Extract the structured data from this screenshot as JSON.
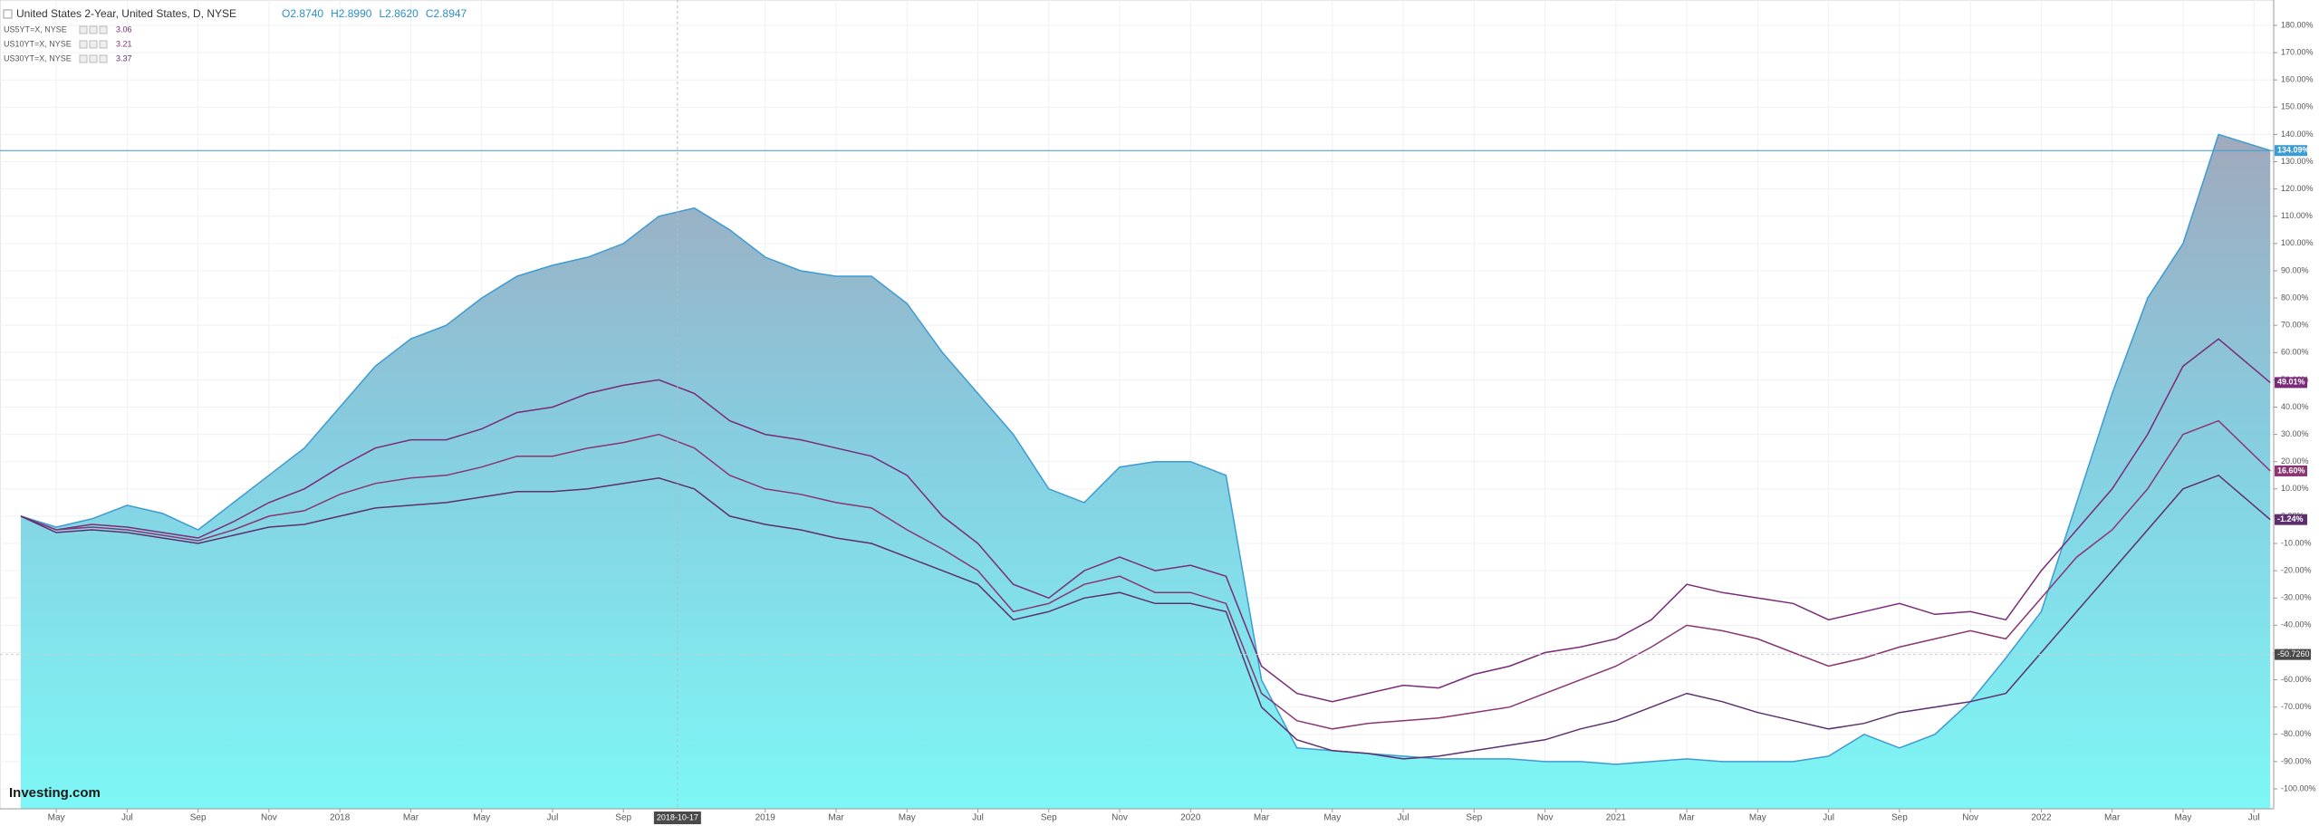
{
  "chart_data": {
    "type": "area",
    "ohlc": [
      "O2.8740",
      "H2.8990",
      "L2.8620",
      "C2.8947"
    ],
    "logo": "Investing.com",
    "x": [
      "2017-04",
      "2017-05",
      "2017-06",
      "2017-07",
      "2017-08",
      "2017-09",
      "2017-10",
      "2017-11",
      "2017-12",
      "2018-01",
      "2018-02",
      "2018-03",
      "2018-04",
      "2018-05",
      "2018-06",
      "2018-07",
      "2018-08",
      "2018-09",
      "2018-10",
      "2018-11",
      "2018-12",
      "2019-01",
      "2019-02",
      "2019-03",
      "2019-04",
      "2019-05",
      "2019-06",
      "2019-07",
      "2019-08",
      "2019-09",
      "2019-10",
      "2019-11",
      "2019-12",
      "2020-01",
      "2020-02",
      "2020-03",
      "2020-04",
      "2020-05",
      "2020-06",
      "2020-07",
      "2020-08",
      "2020-09",
      "2020-10",
      "2020-11",
      "2020-12",
      "2021-01",
      "2021-02",
      "2021-03",
      "2021-04",
      "2021-05",
      "2021-06",
      "2021-07",
      "2021-08",
      "2021-09",
      "2021-10",
      "2021-11",
      "2021-12",
      "2022-01",
      "2022-02",
      "2022-03",
      "2022-04",
      "2022-05",
      "2022-06",
      "2022-07-15"
    ],
    "series": [
      {
        "name": "United States 2-Year, United States, D, NYSE",
        "kind": "area",
        "color": "#3d9bd3",
        "end_label": "134.09%",
        "values": [
          0,
          -4,
          -1,
          4,
          1,
          -5,
          5,
          15,
          25,
          40,
          55,
          65,
          70,
          80,
          88,
          92,
          95,
          100,
          110,
          113,
          105,
          95,
          90,
          88,
          88,
          78,
          60,
          45,
          30,
          10,
          5,
          18,
          20,
          20,
          15,
          -60,
          -85,
          -86,
          -87,
          -88,
          -89,
          -89,
          -89,
          -90,
          -90,
          -91,
          -90,
          -89,
          -90,
          -90,
          -90,
          -88,
          -80,
          -85,
          -80,
          -68,
          -52,
          -35,
          5,
          45,
          80,
          100,
          140,
          134.09
        ]
      },
      {
        "name": "US5YT=X, NYSE",
        "kind": "line",
        "color": "#7a2a78",
        "legend_value": 3.06,
        "end_label": "49.01%",
        "values": [
          0,
          -5,
          -3,
          -4,
          -6,
          -8,
          -2,
          5,
          10,
          18,
          25,
          28,
          28,
          32,
          38,
          40,
          45,
          48,
          50,
          45,
          35,
          30,
          28,
          25,
          22,
          15,
          0,
          -10,
          -25,
          -30,
          -20,
          -15,
          -20,
          -18,
          -22,
          -55,
          -65,
          -68,
          -65,
          -62,
          -63,
          -58,
          -55,
          -50,
          -48,
          -45,
          -38,
          -25,
          -28,
          -30,
          -32,
          -38,
          -35,
          -32,
          -36,
          -35,
          -38,
          -20,
          -5,
          10,
          30,
          55,
          65,
          49.01
        ]
      },
      {
        "name": "US10YT=X, NYSE",
        "kind": "line",
        "color": "#8a3572",
        "legend_value": 3.21,
        "end_label": "16.60%",
        "values": [
          0,
          -5,
          -4,
          -5,
          -7,
          -9,
          -5,
          0,
          2,
          8,
          12,
          14,
          15,
          18,
          22,
          22,
          25,
          27,
          30,
          25,
          15,
          10,
          8,
          5,
          3,
          -5,
          -12,
          -20,
          -35,
          -32,
          -25,
          -22,
          -28,
          -28,
          -32,
          -65,
          -75,
          -78,
          -76,
          -75,
          -74,
          -72,
          -70,
          -65,
          -60,
          -55,
          -48,
          -40,
          -42,
          -45,
          -50,
          -55,
          -52,
          -48,
          -45,
          -42,
          -45,
          -30,
          -15,
          -5,
          10,
          30,
          35,
          16.6
        ]
      },
      {
        "name": "US30YT=X, NYSE",
        "kind": "line",
        "color": "#5e2f6e",
        "legend_value": 3.37,
        "end_label": "-1.24%",
        "values": [
          0,
          -6,
          -5,
          -6,
          -8,
          -10,
          -7,
          -4,
          -3,
          0,
          3,
          4,
          5,
          7,
          9,
          9,
          10,
          12,
          14,
          10,
          0,
          -3,
          -5,
          -8,
          -10,
          -15,
          -20,
          -25,
          -38,
          -35,
          -30,
          -28,
          -32,
          -32,
          -35,
          -70,
          -82,
          -86,
          -87,
          -89,
          -88,
          -86,
          -84,
          -82,
          -78,
          -75,
          -70,
          -65,
          -68,
          -72,
          -75,
          -78,
          -76,
          -72,
          -70,
          -68,
          -65,
          -50,
          -35,
          -20,
          -5,
          10,
          15,
          -1.24
        ]
      }
    ],
    "ylim": [
      -105,
      190
    ],
    "yticks": [
      {
        "value": -100,
        "label": "-100.00%"
      },
      {
        "value": -90,
        "label": "-90.00%"
      },
      {
        "value": -80,
        "label": "-80.00%"
      },
      {
        "value": -70,
        "label": "-70.00%"
      },
      {
        "value": -60,
        "label": "-60.00%"
      },
      {
        "value": -50,
        "label": "-50.00%"
      },
      {
        "value": -40,
        "label": "-40.00%"
      },
      {
        "value": -30,
        "label": "-30.00%"
      },
      {
        "value": -20,
        "label": "-20.00%"
      },
      {
        "value": -10,
        "label": "-10.00%"
      },
      {
        "value": 0,
        "label": "0.00%"
      },
      {
        "value": 10,
        "label": "10.00%"
      },
      {
        "value": 20,
        "label": "20.00%"
      },
      {
        "value": 30,
        "label": "30.00%"
      },
      {
        "value": 40,
        "label": "40.00%"
      },
      {
        "value": 50,
        "label": "50.00%"
      },
      {
        "value": 60,
        "label": "60.00%"
      },
      {
        "value": 70,
        "label": "70.00%"
      },
      {
        "value": 80,
        "label": "80.00%"
      },
      {
        "value": 90,
        "label": "90.00%"
      },
      {
        "value": 100,
        "label": "100.00%"
      },
      {
        "value": 110,
        "label": "110.00%"
      },
      {
        "value": 120,
        "label": "120.00%"
      },
      {
        "value": 130,
        "label": "130.00%"
      },
      {
        "value": 140,
        "label": "140.00%"
      },
      {
        "value": 150,
        "label": "150.00%"
      },
      {
        "value": 160,
        "label": "160.00%"
      },
      {
        "value": 170,
        "label": "170.00%"
      },
      {
        "value": 180,
        "label": "180.00%"
      }
    ],
    "xticks": [
      {
        "value": "2017-05",
        "label": "May"
      },
      {
        "value": "2017-07",
        "label": "Jul"
      },
      {
        "value": "2017-09",
        "label": "Sep"
      },
      {
        "value": "2017-11",
        "label": "Nov"
      },
      {
        "value": "2018-01",
        "label": "2018"
      },
      {
        "value": "2018-03",
        "label": "Mar"
      },
      {
        "value": "2018-05",
        "label": "May"
      },
      {
        "value": "2018-07",
        "label": "Jul"
      },
      {
        "value": "2018-09",
        "label": "Sep"
      },
      {
        "value": "2019-01",
        "label": "2019"
      },
      {
        "value": "2019-03",
        "label": "Mar"
      },
      {
        "value": "2019-05",
        "label": "May"
      },
      {
        "value": "2019-07",
        "label": "Jul"
      },
      {
        "value": "2019-09",
        "label": "Sep"
      },
      {
        "value": "2019-11",
        "label": "Nov"
      },
      {
        "value": "2020-01",
        "label": "2020"
      },
      {
        "value": "2020-03",
        "label": "Mar"
      },
      {
        "value": "2020-05",
        "label": "May"
      },
      {
        "value": "2020-07",
        "label": "Jul"
      },
      {
        "value": "2020-09",
        "label": "Sep"
      },
      {
        "value": "2020-11",
        "label": "Nov"
      },
      {
        "value": "2021-01",
        "label": "2021"
      },
      {
        "value": "2021-03",
        "label": "Mar"
      },
      {
        "value": "2021-05",
        "label": "May"
      },
      {
        "value": "2021-07",
        "label": "Jul"
      },
      {
        "value": "2021-09",
        "label": "Sep"
      },
      {
        "value": "2021-11",
        "label": "Nov"
      },
      {
        "value": "2022-01",
        "label": "2022"
      },
      {
        "value": "2022-03",
        "label": "Mar"
      },
      {
        "value": "2022-05",
        "label": "May"
      },
      {
        "value": "2022-07",
        "label": "Jul"
      }
    ],
    "crosshair": {
      "x": "2018-10-17",
      "y": {
        "value": -50.726,
        "label": "-50.7260"
      }
    },
    "grid": true
  }
}
